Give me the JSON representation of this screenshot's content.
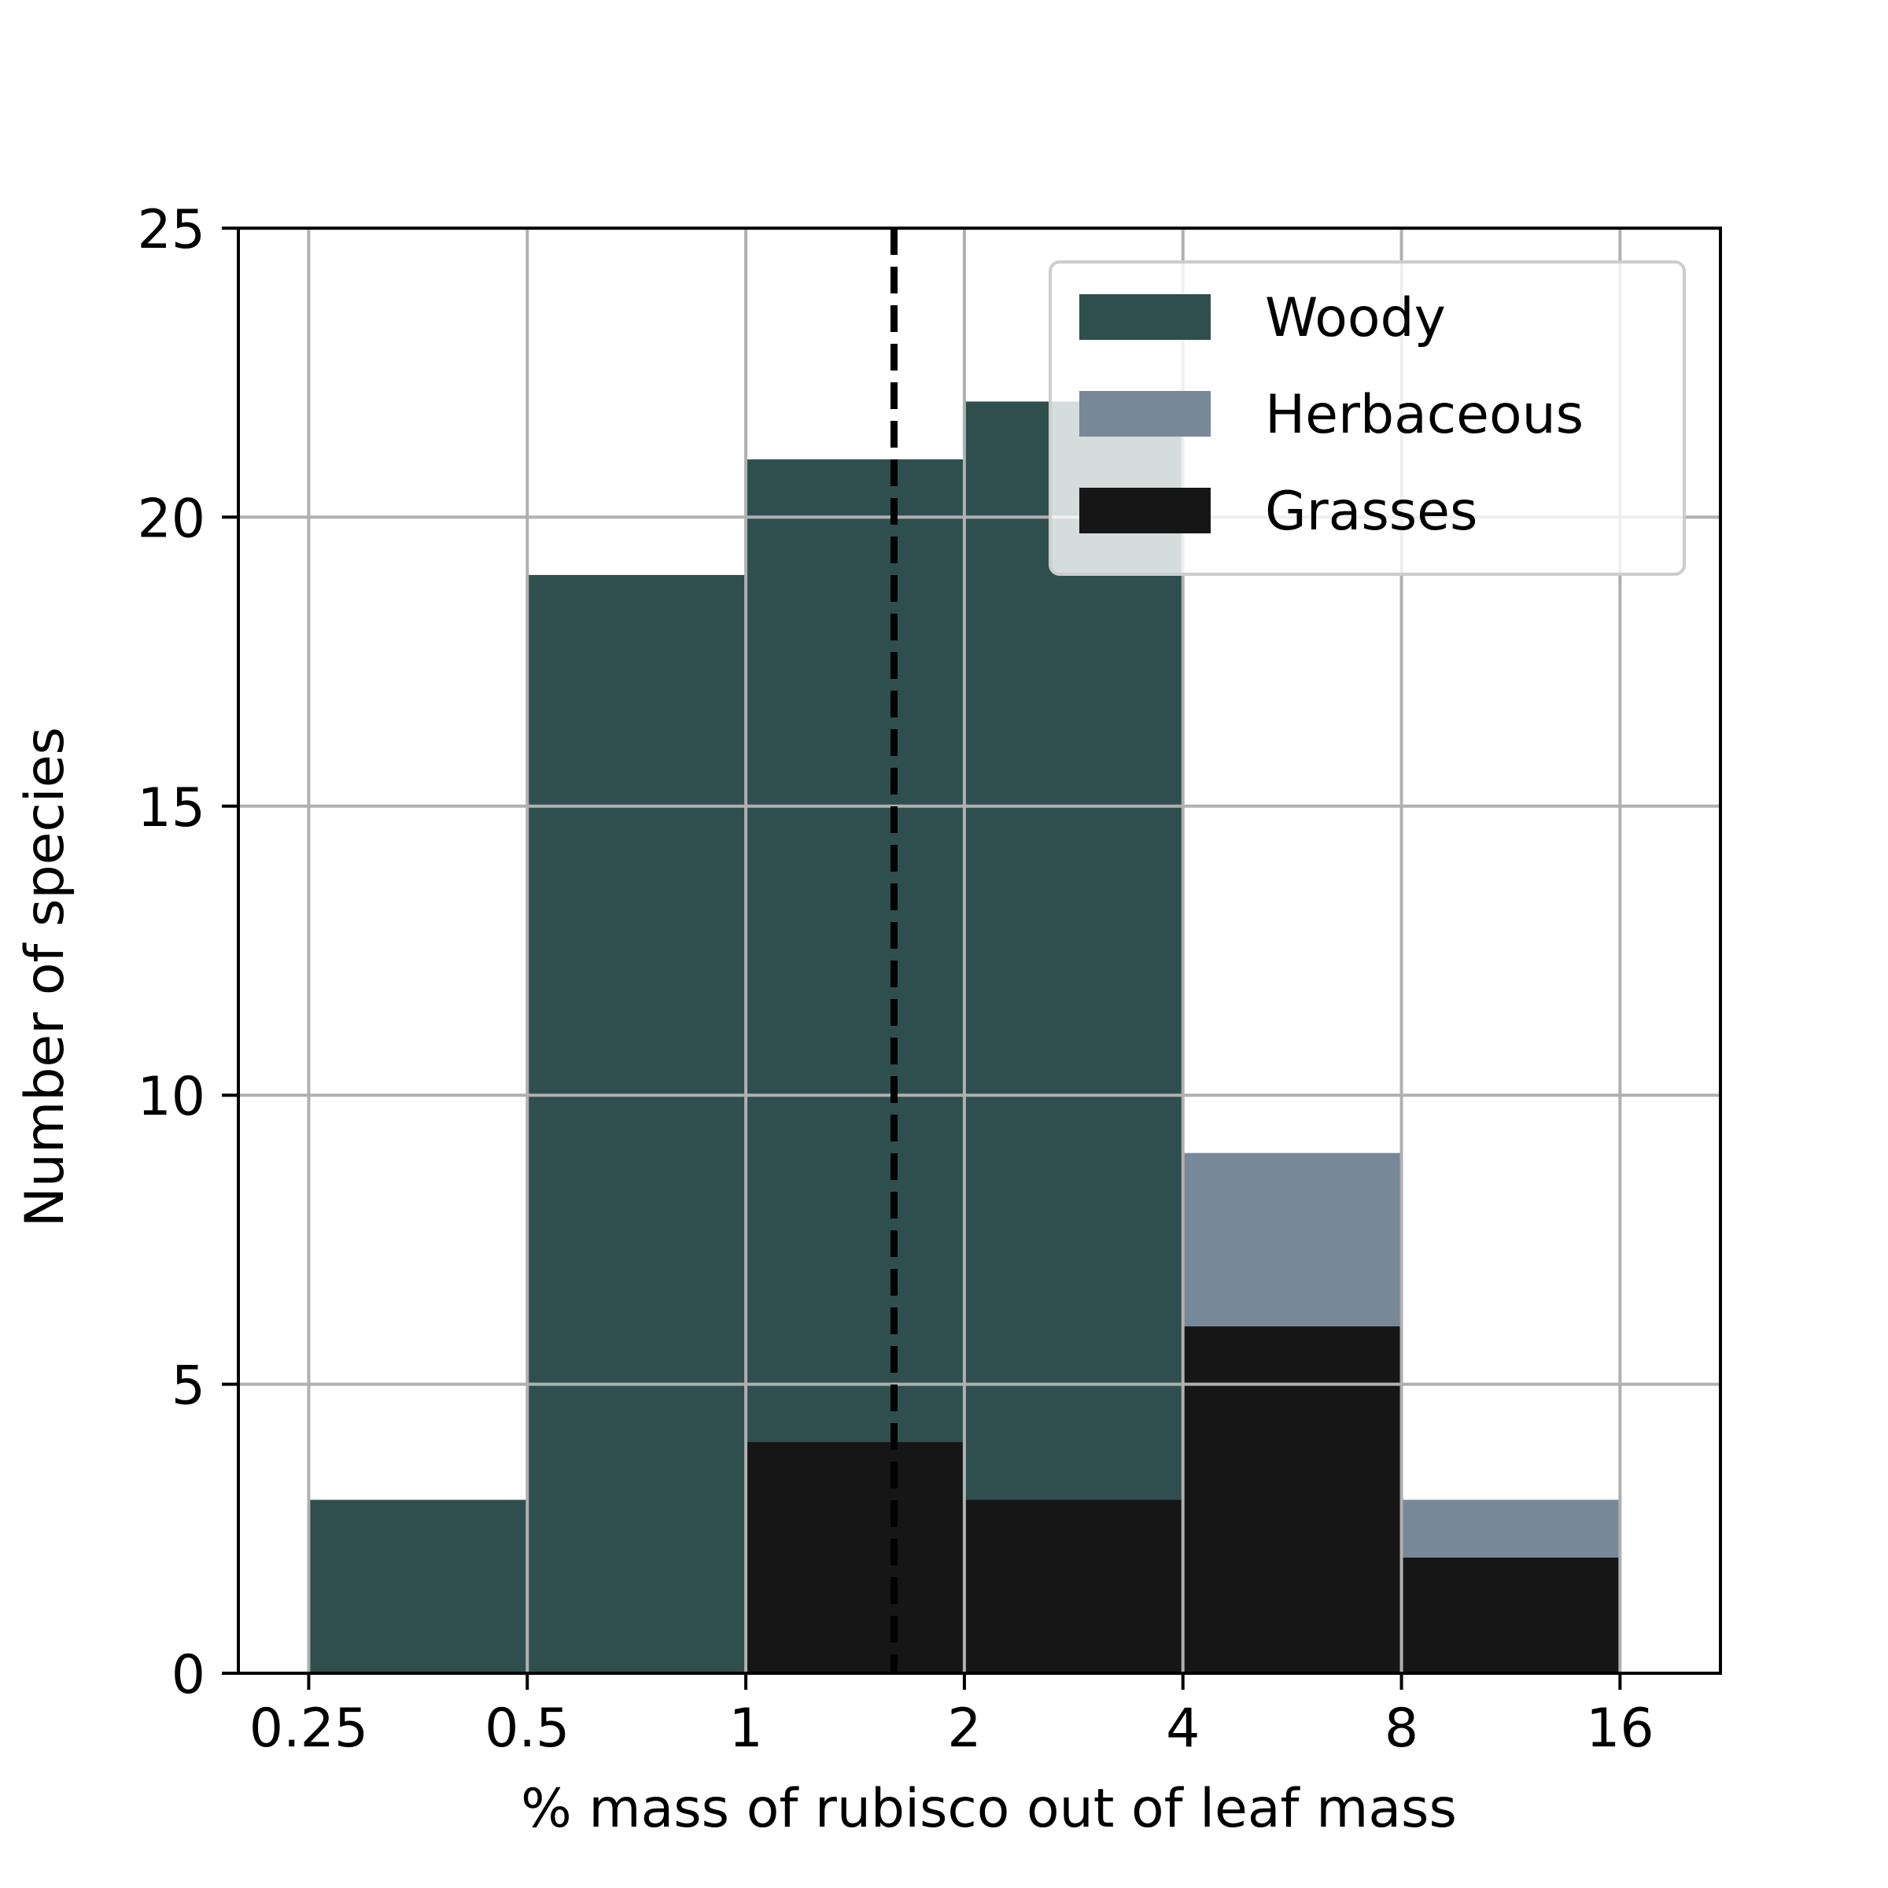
{
  "chart_data": {
    "type": "bar",
    "x_scale": "log2",
    "bin_edges": [
      0.25,
      0.5,
      1,
      2,
      4,
      8,
      16
    ],
    "xticks": [
      "0.25",
      "0.5",
      "1",
      "2",
      "4",
      "8",
      "16"
    ],
    "yticks": [
      "0",
      "5",
      "10",
      "15",
      "20",
      "25"
    ],
    "xlim": [
      0.2,
      22
    ],
    "ylim": [
      0,
      25
    ],
    "xlabel": "% mass of rubisco out of leaf mass",
    "ylabel": "Number of species",
    "grid": true,
    "legend_position": "top-right",
    "series": [
      {
        "name": "Woody",
        "color": "#2f4f4f",
        "values": [
          3,
          19,
          21,
          22,
          0,
          0
        ]
      },
      {
        "name": "Herbaceous",
        "color": "#778899",
        "values": [
          0,
          0,
          4,
          3,
          9,
          3
        ]
      },
      {
        "name": "Grasses",
        "color": "#161616",
        "values": [
          0,
          0,
          4,
          3,
          6,
          2
        ]
      }
    ],
    "reference_line": {
      "x": 1.6,
      "style": "dashed",
      "color": "#000000"
    }
  }
}
